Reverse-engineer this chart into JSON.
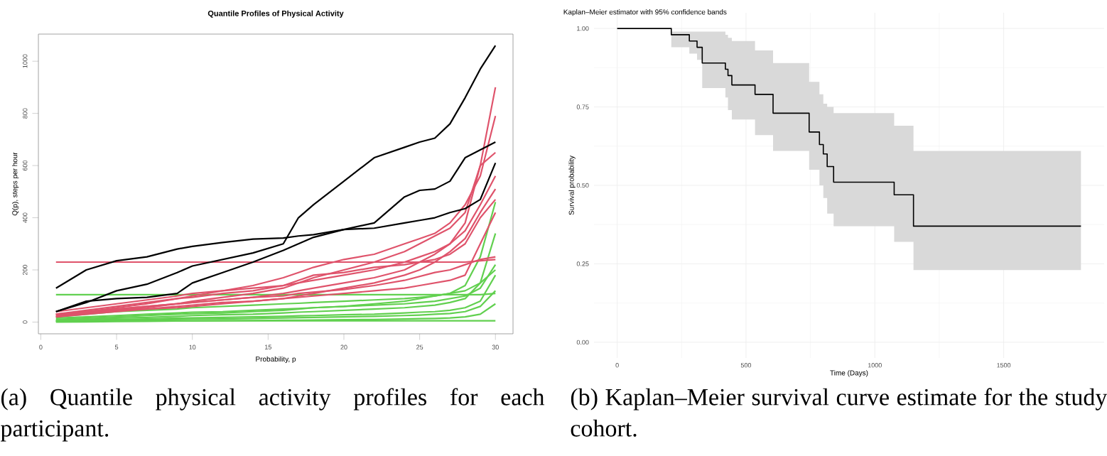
{
  "chart_data": [
    {
      "type": "line",
      "title": "Quantile Profiles of Physical Activity",
      "xlabel": "Probability, p",
      "ylabel": "Q(p), steps per hour",
      "x": [
        1,
        3,
        5,
        7,
        9,
        10,
        12,
        14,
        16,
        17,
        18,
        20,
        22,
        24,
        25,
        26,
        27,
        28,
        29,
        30
      ],
      "xlim": [
        -0.16,
        31.16
      ],
      "xticks": [
        0,
        5,
        10,
        15,
        20,
        25,
        30
      ],
      "ylim": [
        -45,
        1104
      ],
      "yticks": [
        0,
        200,
        400,
        600,
        800,
        1000
      ],
      "series": [
        {
          "color": "#61d04f",
          "values": [
            105,
            105,
            105,
            105,
            105,
            105,
            105,
            105,
            105,
            105,
            105,
            105,
            105,
            105,
            105,
            105,
            105,
            105,
            105,
            110
          ]
        },
        {
          "color": "#61d04f",
          "values": [
            10,
            15,
            20,
            25,
            30,
            32,
            35,
            40,
            45,
            50,
            55,
            60,
            70,
            80,
            90,
            100,
            110,
            140,
            250,
            460
          ]
        },
        {
          "color": "#61d04f",
          "values": [
            5,
            10,
            15,
            18,
            22,
            25,
            28,
            30,
            35,
            38,
            40,
            45,
            50,
            55,
            60,
            65,
            75,
            90,
            150,
            340
          ]
        },
        {
          "color": "#61d04f",
          "values": [
            15,
            20,
            25,
            30,
            35,
            38,
            40,
            45,
            50,
            52,
            55,
            60,
            65,
            70,
            75,
            80,
            90,
            100,
            130,
            220
          ]
        },
        {
          "color": "#61d04f",
          "values": [
            5,
            8,
            10,
            12,
            15,
            16,
            18,
            20,
            22,
            24,
            25,
            28,
            30,
            35,
            38,
            40,
            45,
            55,
            80,
            180
          ]
        },
        {
          "color": "#61d04f",
          "values": [
            2,
            4,
            6,
            8,
            10,
            11,
            12,
            14,
            16,
            17,
            18,
            20,
            22,
            25,
            27,
            30,
            33,
            40,
            60,
            120
          ]
        },
        {
          "color": "#61d04f",
          "values": [
            0,
            1,
            2,
            3,
            4,
            4,
            5,
            6,
            7,
            7,
            8,
            9,
            10,
            12,
            13,
            14,
            16,
            20,
            30,
            70
          ]
        },
        {
          "color": "#61d04f",
          "values": [
            5,
            5,
            5,
            5,
            5,
            5,
            5,
            5,
            5,
            5,
            5,
            5,
            5,
            5,
            5,
            5,
            5,
            5,
            5,
            5
          ]
        },
        {
          "color": "#61d04f",
          "values": [
            20,
            30,
            40,
            45,
            50,
            55,
            60,
            65,
            70,
            72,
            75,
            80,
            85,
            90,
            95,
            100,
            110,
            120,
            150,
            200
          ]
        },
        {
          "color": "#df536b",
          "values": [
            230,
            230,
            230,
            230,
            230,
            230,
            230,
            230,
            230,
            230,
            230,
            230,
            230,
            230,
            230,
            230,
            230,
            230,
            235,
            240
          ]
        },
        {
          "color": "#df536b",
          "values": [
            30,
            40,
            50,
            60,
            70,
            75,
            85,
            95,
            110,
            120,
            130,
            150,
            170,
            200,
            230,
            260,
            300,
            380,
            600,
            900
          ]
        },
        {
          "color": "#df536b",
          "values": [
            25,
            40,
            55,
            70,
            90,
            100,
            120,
            140,
            170,
            190,
            210,
            240,
            260,
            300,
            320,
            340,
            380,
            450,
            560,
            790
          ]
        },
        {
          "color": "#df536b",
          "values": [
            20,
            35,
            45,
            55,
            70,
            80,
            95,
            110,
            130,
            150,
            170,
            200,
            230,
            270,
            300,
            330,
            360,
            420,
            600,
            650
          ]
        },
        {
          "color": "#df536b",
          "values": [
            30,
            45,
            60,
            75,
            90,
            95,
            110,
            120,
            140,
            150,
            160,
            180,
            200,
            230,
            250,
            270,
            300,
            350,
            450,
            560
          ]
        },
        {
          "color": "#df536b",
          "values": [
            20,
            30,
            40,
            50,
            55,
            60,
            70,
            80,
            90,
            100,
            110,
            130,
            150,
            180,
            200,
            230,
            270,
            320,
            420,
            510
          ]
        },
        {
          "color": "#df536b",
          "values": [
            40,
            55,
            70,
            85,
            100,
            110,
            120,
            130,
            140,
            160,
            180,
            190,
            210,
            220,
            230,
            240,
            260,
            300,
            400,
            470
          ]
        },
        {
          "color": "#df536b",
          "values": [
            25,
            35,
            45,
            50,
            60,
            65,
            75,
            80,
            90,
            95,
            100,
            110,
            120,
            130,
            140,
            150,
            160,
            180,
            300,
            420
          ]
        },
        {
          "color": "#df536b",
          "values": [
            30,
            40,
            50,
            60,
            70,
            75,
            85,
            95,
            100,
            110,
            115,
            125,
            140,
            160,
            175,
            190,
            200,
            220,
            240,
            250
          ]
        },
        {
          "color": "#000000",
          "values": [
            130,
            200,
            235,
            250,
            280,
            290,
            305,
            318,
            322,
            330,
            335,
            355,
            360,
            380,
            390,
            400,
            420,
            435,
            470,
            610
          ]
        },
        {
          "color": "#000000",
          "values": [
            40,
            75,
            120,
            145,
            190,
            215,
            240,
            265,
            300,
            400,
            450,
            540,
            630,
            670,
            690,
            705,
            760,
            860,
            970,
            1060
          ]
        },
        {
          "color": "#000000",
          "values": [
            40,
            80,
            90,
            95,
            110,
            150,
            190,
            230,
            275,
            300,
            325,
            355,
            380,
            480,
            505,
            510,
            540,
            630,
            660,
            690
          ]
        }
      ],
      "annotations": [
        "(a) Quantile physical activity profiles for each participant."
      ]
    },
    {
      "type": "step",
      "title": "Kaplan–Meier estimator with 95% confidence bands",
      "xlabel": "Time (Days)",
      "ylabel": "Survival probability",
      "xlim": [
        -90,
        1890
      ],
      "xticks": [
        0,
        500,
        1000,
        1500
      ],
      "ylim": [
        -0.05,
        1.05
      ],
      "yticks": [
        {
          "value": 0,
          "label": "0.00"
        },
        {
          "value": 0.25,
          "label": "0.25"
        },
        {
          "value": 0.5,
          "label": "0.50"
        },
        {
          "value": 0.75,
          "label": "0.75"
        },
        {
          "value": 1,
          "label": "1.00"
        }
      ],
      "grid": true,
      "series": [
        {
          "color": "#000000",
          "x": [
            0,
            210,
            280,
            310,
            330,
            420,
            430,
            445,
            535,
            605,
            745,
            785,
            800,
            815,
            840,
            1075,
            1150,
            1800
          ],
          "values": [
            1.0,
            0.98,
            0.96,
            0.94,
            0.89,
            0.87,
            0.85,
            0.82,
            0.79,
            0.73,
            0.67,
            0.63,
            0.6,
            0.56,
            0.51,
            0.47,
            0.37,
            0.37
          ],
          "lower": [
            1.0,
            0.94,
            0.92,
            0.9,
            0.81,
            0.78,
            0.74,
            0.71,
            0.66,
            0.61,
            0.55,
            0.5,
            0.46,
            0.41,
            0.37,
            0.32,
            0.23,
            0.23
          ],
          "upper": [
            1.0,
            0.99,
            0.99,
            0.99,
            0.99,
            0.98,
            0.97,
            0.96,
            0.93,
            0.89,
            0.83,
            0.79,
            0.76,
            0.75,
            0.73,
            0.69,
            0.61,
            0.61
          ]
        }
      ],
      "annotations": [
        "(b) Kaplan–Meier survival curve estimate for the study cohort."
      ]
    }
  ]
}
